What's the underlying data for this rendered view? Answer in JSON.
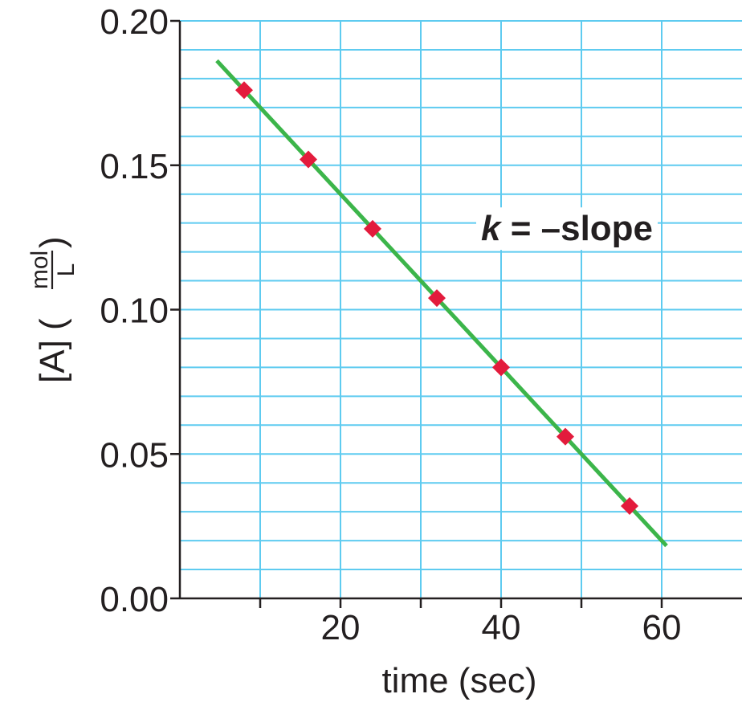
{
  "chart_data": {
    "type": "scatter",
    "x": [
      8,
      16,
      24,
      32,
      40,
      48,
      56
    ],
    "y": [
      0.176,
      0.152,
      0.128,
      0.104,
      0.08,
      0.056,
      0.032
    ],
    "fit_line": {
      "x": [
        4.6,
        60.6
      ],
      "y": [
        0.1862,
        0.0182
      ]
    },
    "xlim": [
      0,
      70
    ],
    "ylim": [
      0,
      0.2
    ],
    "x_major_ticks": [
      10,
      20,
      30,
      40,
      50,
      60
    ],
    "x_tick_labels": [
      "20",
      "40",
      "60"
    ],
    "x_tick_label_values": [
      20,
      40,
      60
    ],
    "y_major_ticks": [
      0,
      0.05,
      0.1,
      0.15,
      0.2
    ],
    "y_tick_labels": [
      "0.00",
      "0.05",
      "0.10",
      "0.15",
      "0.20"
    ],
    "y_minor_step": 0.01,
    "grid": true,
    "xlabel": "time (sec)",
    "ylabel": {
      "main": "[A] (",
      "frac_num": "mol",
      "frac_den": "L",
      "close": ")"
    },
    "annotation": {
      "k": "k",
      "rest": " = –slope",
      "x": 37.5,
      "y": 0.124
    },
    "colors": {
      "grid": "#5ecbf0",
      "axis": "#231f20",
      "line": "#3cb54a",
      "marker": "#e31b3c",
      "text": "#231f20"
    }
  }
}
